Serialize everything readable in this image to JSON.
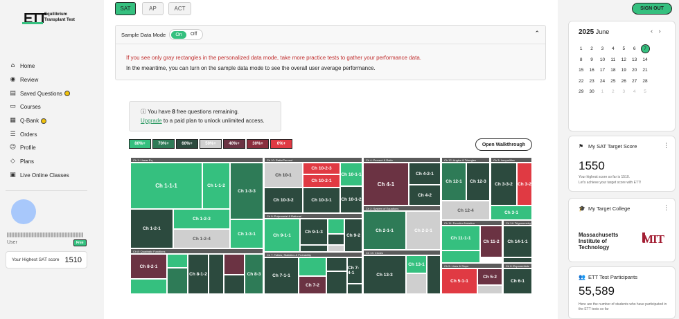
{
  "brand": {
    "mark": "ETT",
    "line1": "Equilibrium",
    "line2": "Transplant Test"
  },
  "nav": [
    {
      "label": "Home",
      "icon": "home-icon"
    },
    {
      "label": "Review",
      "icon": "review-icon"
    },
    {
      "label": "Saved Questions",
      "icon": "bookmark-icon",
      "badge": true
    },
    {
      "label": "Courses",
      "icon": "courses-icon"
    },
    {
      "label": "Q-Bank",
      "icon": "qbank-icon",
      "badge": true
    },
    {
      "label": "Orders",
      "icon": "orders-icon"
    },
    {
      "label": "Profile",
      "icon": "profile-icon"
    },
    {
      "label": "Plans",
      "icon": "plans-icon"
    },
    {
      "label": "Live Online Classes",
      "icon": "live-icon"
    }
  ],
  "user": {
    "role": "User",
    "plan": "Free",
    "score_label": "Your Highest SAT score",
    "score": "1510"
  },
  "tests": [
    "SAT",
    "AP",
    "ACT"
  ],
  "sign_out": "SIGN OUT",
  "sample_mode": {
    "label": "Sample Data Mode",
    "on": "On",
    "off": "Off",
    "msg1": "If you see only gray rectangles in the personalized data mode, take more practice tests to gather your performance data.",
    "msg2": "In the meantime, you can turn on the sample data mode to see the overall user average performance."
  },
  "remaining": {
    "prefix": "You have ",
    "count": "8",
    "suffix": " free questions remaining.",
    "upgrade": "Upgrade",
    "rest": " to a paid plan to unlock unlimited access."
  },
  "legend": [
    {
      "label": "80%+",
      "color": "#35c07f"
    },
    {
      "label": "70%+",
      "color": "#2e7b57"
    },
    {
      "label": "60%+",
      "color": "#2c4a3e"
    },
    {
      "label": "50%+",
      "color": "#cfcfcf"
    },
    {
      "label": "40%+",
      "color": "#6b3343"
    },
    {
      "label": "30%+",
      "color": "#8a2f3e"
    },
    {
      "label": "0%+",
      "color": "#e03a43"
    }
  ],
  "walkthrough": "Open Walkthrough",
  "treemap": {
    "headers": [
      "Ch 1: Linear Eq.",
      "Ch 10: Ratio/Percent",
      "Ch 4: Percent & Ratio",
      "Ch 12: Angles & Triangles",
      "Ch 3: Inequalities",
      "Ch 2: System of Equations",
      "Ch 9: Polynomial & Rational",
      "Ch 11: Function Notation",
      "Ch 14: Trigonometry",
      "Ch 8: Quadratic Functions",
      "Ch 7: Tables, Statistics & Probability",
      "Ch 13: Circles",
      "Ch 5: Lines & Slope",
      "Ch 6: Exponentials"
    ],
    "cells": [
      {
        "label": "Ch 1-1-1",
        "color": "#35c07f"
      },
      {
        "label": "Ch 1-1-2",
        "color": "#35c07f"
      },
      {
        "label": "Ch 1-3-3",
        "color": "#2e7b57"
      },
      {
        "label": "Ch 1-2-1",
        "color": "#2c4a3e"
      },
      {
        "label": "Ch 1-2-3",
        "color": "#35c07f"
      },
      {
        "label": "Ch 1-2-4",
        "color": "#cfcfcf"
      },
      {
        "label": "Ch 1-3-1",
        "color": "#35c07f"
      },
      {
        "label": "Ch 10-1",
        "color": "#cfcfcf"
      },
      {
        "label": "Ch 10-2-3",
        "color": "#e03a43"
      },
      {
        "label": "Ch 10-2-1",
        "color": "#e03a43"
      },
      {
        "label": "Ch 10-1-1",
        "color": "#35c07f"
      },
      {
        "label": "Ch 10-2-5",
        "color": "#e03a43"
      },
      {
        "label": "Ch 10-3-2",
        "color": "#2c4a3e"
      },
      {
        "label": "Ch 10-3-1",
        "color": "#2c4a3e"
      },
      {
        "label": "Ch 10-1-2",
        "color": "#2c4a3e"
      },
      {
        "label": "Ch 4-1",
        "color": "#6b3343"
      },
      {
        "label": "Ch 4-2-1",
        "color": "#2c4a3e"
      },
      {
        "label": "Ch 4-2",
        "color": "#2c4a3e"
      },
      {
        "label": "Ch 12-1",
        "color": "#2e7b57"
      },
      {
        "label": "Ch 12-3",
        "color": "#2c4a3e"
      },
      {
        "label": "Ch 12-4",
        "color": "#cfcfcf"
      },
      {
        "label": "Ch 3-3-2",
        "color": "#2c4a3e"
      },
      {
        "label": "Ch 3-2",
        "color": "#e03a43"
      },
      {
        "label": "Ch 3-1",
        "color": "#35c07f"
      },
      {
        "label": "Ch 2-1-1",
        "color": "#2e7b57"
      },
      {
        "label": "Ch 2-2-1",
        "color": "#cfcfcf"
      },
      {
        "label": "Ch 9-1-1",
        "color": "#35c07f"
      },
      {
        "label": "Ch 9-1-3",
        "color": "#2c4a3e"
      },
      {
        "label": "Ch 9-2",
        "color": "#2c4a3e"
      },
      {
        "label": "Ch 11-1-1",
        "color": "#35c07f"
      },
      {
        "label": "Ch 11-2",
        "color": "#6b3343"
      },
      {
        "label": "Ch 14-1-1",
        "color": "#2c4a3e"
      },
      {
        "label": "Ch 8-2-1",
        "color": "#6b3343"
      },
      {
        "label": "Ch 8-1-2",
        "color": "#2c4a3e"
      },
      {
        "label": "Ch 8-3",
        "color": "#2e7b57"
      },
      {
        "label": "Ch 8-1-3",
        "color": "#35c07f"
      },
      {
        "label": "Ch 7-1-1",
        "color": "#2c4a3e"
      },
      {
        "label": "Ch 7-2",
        "color": "#6b3343"
      },
      {
        "label": "Ch 7-4-1",
        "color": "#2c4a3e"
      },
      {
        "label": "Ch 13-3",
        "color": "#2c4a3e"
      },
      {
        "label": "Ch 13-1",
        "color": "#35c07f"
      },
      {
        "label": "Ch 5-1-1",
        "color": "#e03a43"
      },
      {
        "label": "Ch 5-2",
        "color": "#6b3343"
      },
      {
        "label": "Ch 6-1",
        "color": "#2c4a3e"
      }
    ]
  },
  "calendar": {
    "year": "2025",
    "month": "June",
    "selected": "7",
    "days": [
      "1",
      "2",
      "3",
      "4",
      "5",
      "6",
      "7",
      "8",
      "9",
      "10",
      "11",
      "12",
      "13",
      "14",
      "15",
      "16",
      "17",
      "18",
      "19",
      "20",
      "21",
      "22",
      "23",
      "24",
      "25",
      "26",
      "27",
      "28",
      "29",
      "30",
      "1",
      "2",
      "3",
      "4",
      "5"
    ]
  },
  "target_score": {
    "title": "My SAT Target Score",
    "value": "1550",
    "note1": "Your highest score so far is 1510.",
    "note2": "Let's achieve your target score with ETT!"
  },
  "target_college": {
    "title": "My Target College",
    "line1": "Massachusetts",
    "line2": "Institute of",
    "line3": "Technology",
    "logo": "MIT"
  },
  "participants": {
    "title": "ETT Test Participants",
    "value": "55,589",
    "note": "Here are the number of students who have participated in the ETT tests so far"
  }
}
